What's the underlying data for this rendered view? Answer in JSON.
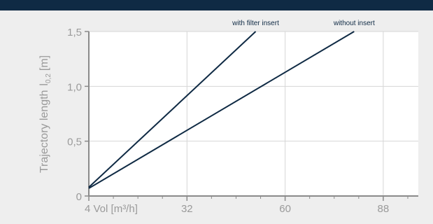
{
  "chart_data": {
    "type": "line",
    "title": "",
    "ylabel": "Trajectory length",
    "ylabel_symbol": "l",
    "ylabel_subscript": "0,2",
    "ylabel_unit": "[m]",
    "xlim": [
      4,
      98
    ],
    "ylim": [
      0,
      1.5
    ],
    "x_ticks": [
      {
        "value": 4,
        "label": "4 Vol [m³/h]"
      },
      {
        "value": 32,
        "label": "32"
      },
      {
        "value": 60,
        "label": "60"
      },
      {
        "value": 88,
        "label": "88"
      }
    ],
    "y_ticks": [
      {
        "value": 0,
        "label": "0"
      },
      {
        "value": 0.5,
        "label": "0,5"
      },
      {
        "value": 1.0,
        "label": "1,0"
      },
      {
        "value": 1.5,
        "label": "1,5"
      }
    ],
    "x_minor_step": 7,
    "grid": true,
    "series": [
      {
        "name": "with filter insert",
        "x": [
          4,
          51.6
        ],
        "y": [
          0.08,
          1.5
        ]
      },
      {
        "name": "without insert",
        "x": [
          4,
          79.7
        ],
        "y": [
          0.07,
          1.5
        ]
      }
    ],
    "colors": {
      "line": "#0f2a44",
      "axis": "#8a8a8a",
      "grid": "#d6d6d6",
      "plot_bg": "#ffffff",
      "page_bg": "#eeeeee",
      "top_bar": "#0f2a44",
      "text": "#9a9a9a",
      "series_label": "#0f2a44"
    }
  }
}
